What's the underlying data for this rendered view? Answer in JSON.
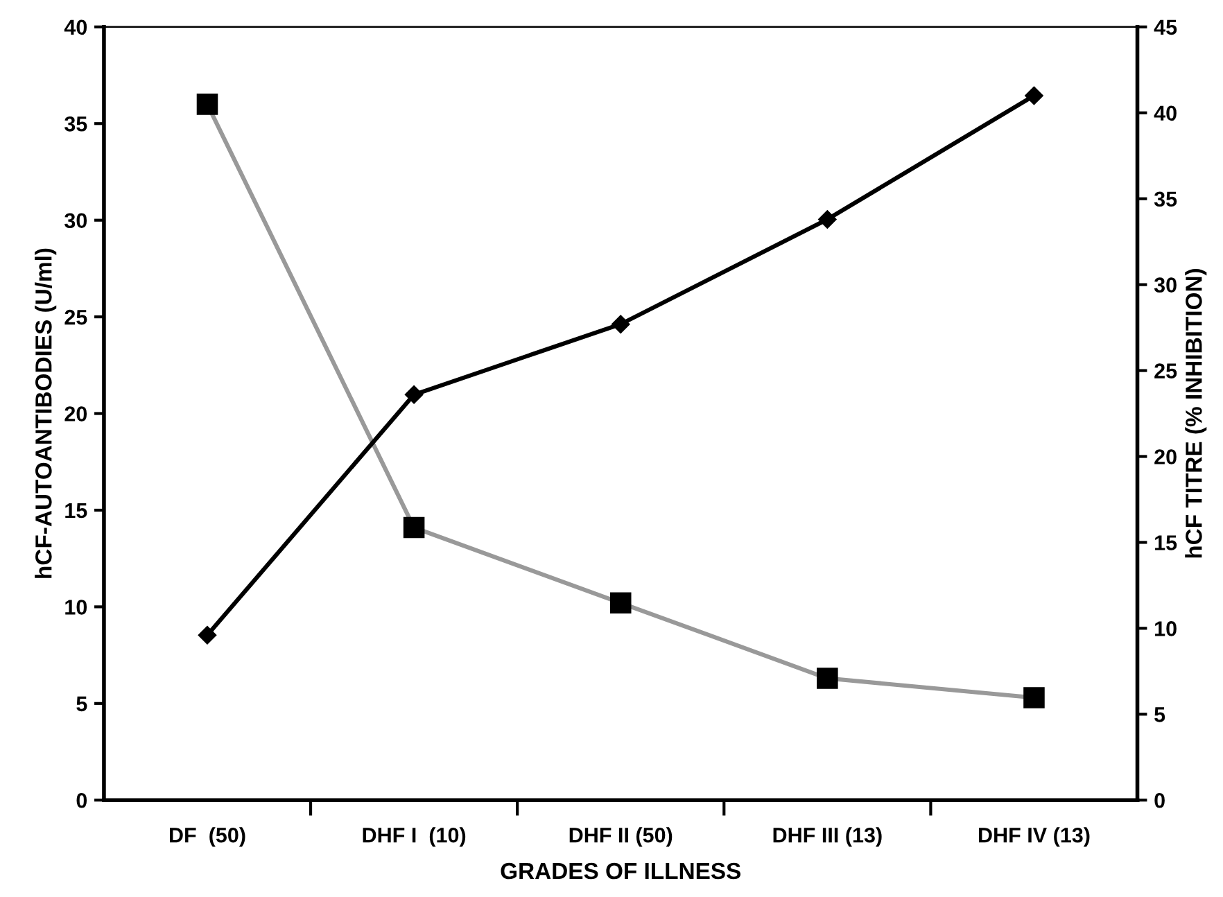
{
  "chart_data": {
    "type": "line",
    "xlabel": "GRADES OF ILLNESS",
    "ylabel": "hCF-AUTOANTIBODIES (U/ml)",
    "y2label": "hCF TITRE (% INHIBITION)",
    "categories": [
      "DF  (50)",
      "DHF I  (10)",
      "DHF II (50)",
      "DHF III (13)",
      "DHF IV (13)"
    ],
    "series": [
      {
        "color": "#999999",
        "marker": "square",
        "values": [
          36.0,
          14.1,
          10.2,
          6.3,
          5.3
        ]
      },
      {
        "color": "#000000",
        "marker": "diamond",
        "axis": "y2",
        "values": [
          9.6,
          23.6,
          27.7,
          33.8,
          41.0
        ]
      }
    ],
    "ylim": [
      0,
      40
    ],
    "yticks": [
      0,
      5,
      10,
      15,
      20,
      25,
      30,
      35,
      40
    ],
    "y2lim": [
      0,
      45
    ],
    "y2ticks": [
      0,
      5,
      10,
      15,
      20,
      25,
      30,
      35,
      40,
      45
    ],
    "grid": false,
    "legend": false,
    "line_style": "solid"
  }
}
